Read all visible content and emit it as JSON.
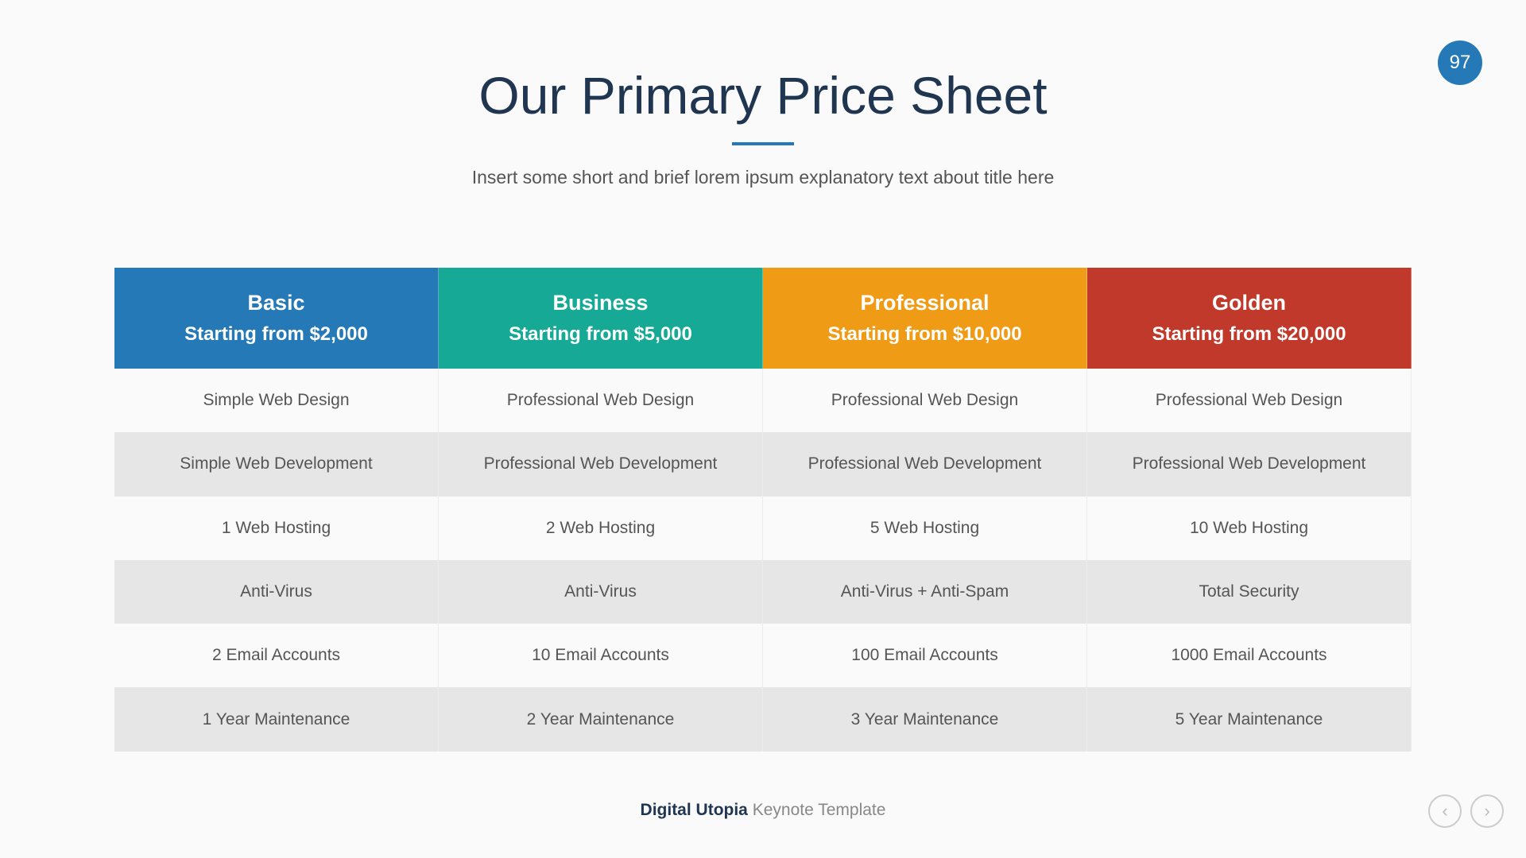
{
  "slide_number": "97",
  "title": "Our Primary Price Sheet",
  "subtitle": "Insert some short and brief lorem ipsum explanatory text about title here",
  "plans": [
    {
      "name": "Basic",
      "price": "Starting from $2,000",
      "color": "#2579b7",
      "features": [
        "Simple Web Design",
        "Simple Web Development",
        "1 Web Hosting",
        "Anti-Virus",
        "2 Email Accounts",
        "1 Year Maintenance"
      ]
    },
    {
      "name": "Business",
      "price": "Starting from $5,000",
      "color": "#16a995",
      "features": [
        "Professional Web Design",
        "Professional Web Development",
        "2 Web Hosting",
        "Anti-Virus",
        "10 Email Accounts",
        "2 Year Maintenance"
      ]
    },
    {
      "name": "Professional",
      "price": "Starting from $10,000",
      "color": "#f09b15",
      "features": [
        "Professional  Web Design",
        "Professional Web Development",
        "5 Web Hosting",
        "Anti-Virus + Anti-Spam",
        "100 Email Accounts",
        "3 Year Maintenance"
      ]
    },
    {
      "name": "Golden",
      "price": "Starting from $20,000",
      "color": "#c0392b",
      "features": [
        "Professional Web Design",
        "Professional Web Development",
        "10 Web Hosting",
        "Total Security",
        "1000 Email Accounts",
        "5 Year Maintenance"
      ]
    }
  ],
  "footer": {
    "brand": "Digital Utopia",
    "rest": "Keynote Template"
  },
  "nav": {
    "prev_icon": "chevron-left-icon",
    "next_icon": "chevron-right-icon"
  }
}
